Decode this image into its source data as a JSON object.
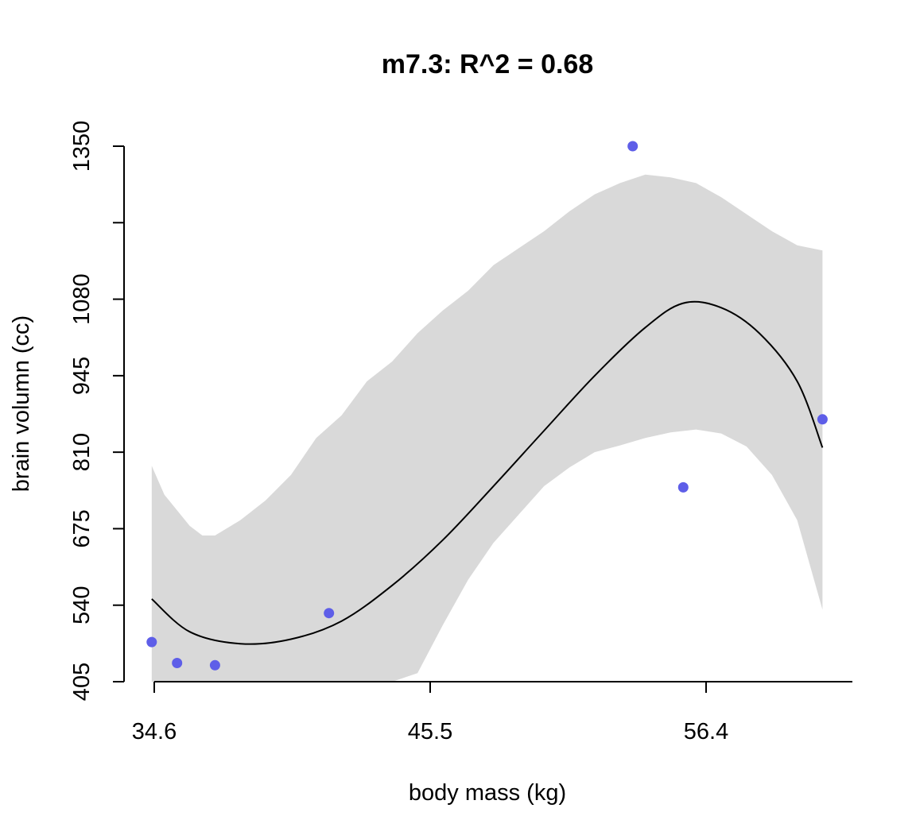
{
  "chart_data": {
    "type": "scatter",
    "title": "m7.3: R^2 = 0.68",
    "xlabel": "body mass (kg)",
    "ylabel": "brain volumn (cc)",
    "xlim": [
      34.6,
      61.0
    ],
    "ylim": [
      405,
      1350
    ],
    "x_ticks": [
      34.6,
      45.5,
      56.4
    ],
    "x_tick_labels": [
      "34.6",
      "45.5",
      "56.4"
    ],
    "y_ticks": [
      405,
      540,
      675,
      810,
      945,
      1080,
      1215,
      1350
    ],
    "y_tick_labels": [
      "405",
      "540",
      "675",
      "810",
      "945",
      "1080",
      "",
      "1350"
    ],
    "grid": false,
    "colors": {
      "points": "#5e5ee8",
      "band": "#d9d9d9",
      "line": "#000000"
    },
    "points": [
      {
        "x": 34.5,
        "y": 475
      },
      {
        "x": 35.5,
        "y": 438
      },
      {
        "x": 37.0,
        "y": 434
      },
      {
        "x": 41.5,
        "y": 526
      },
      {
        "x": 53.5,
        "y": 1350
      },
      {
        "x": 55.5,
        "y": 748
      },
      {
        "x": 61.0,
        "y": 868
      }
    ],
    "fit_line": {
      "x": [
        34.5,
        36,
        38,
        40,
        42,
        44,
        46,
        48,
        50,
        52,
        54,
        55.5,
        57,
        58.5,
        60,
        61
      ],
      "y": [
        551,
        493,
        472,
        480,
        512,
        575,
        655,
        750,
        848,
        945,
        1030,
        1073,
        1065,
        1020,
        935,
        818
      ]
    },
    "interval_band": {
      "x": [
        34.5,
        35,
        36,
        36.5,
        37,
        38,
        39,
        40,
        41,
        42,
        43,
        44,
        45,
        46,
        47,
        48,
        49,
        50,
        51,
        52,
        53,
        54,
        55,
        56,
        57,
        58,
        59,
        60,
        61
      ],
      "upper": [
        786,
        735,
        680,
        663,
        663,
        690,
        725,
        770,
        835,
        875,
        935,
        970,
        1020,
        1060,
        1095,
        1140,
        1170,
        1200,
        1235,
        1265,
        1285,
        1300,
        1295,
        1285,
        1260,
        1230,
        1200,
        1175,
        1166
      ],
      "lower": [
        405,
        405,
        405,
        405,
        405,
        405,
        405,
        405,
        405,
        405,
        405,
        405,
        420,
        505,
        585,
        650,
        700,
        750,
        783,
        810,
        822,
        835,
        845,
        850,
        843,
        820,
        770,
        690,
        532
      ]
    }
  }
}
